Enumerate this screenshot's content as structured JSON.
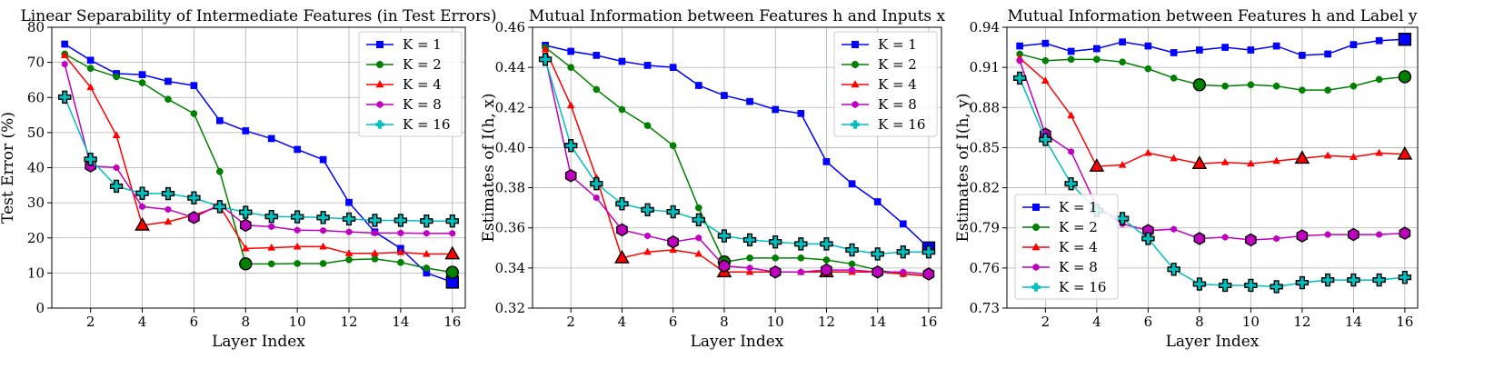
{
  "chart_data": [
    {
      "type": "line",
      "title": "Linear Separability of Intermediate Features (in Test Errors)",
      "xlabel": "Layer Index",
      "ylabel": "Test Error (%)",
      "xlim": [
        0.5,
        16.5
      ],
      "ylim": [
        0,
        80
      ],
      "xticks": [
        2,
        4,
        6,
        8,
        10,
        12,
        14,
        16
      ],
      "xtick_labels": [
        "2",
        "4",
        "6",
        "8",
        "10",
        "12",
        "14",
        "16"
      ],
      "yticks": [
        0,
        10,
        20,
        30,
        40,
        50,
        60,
        70,
        80
      ],
      "ytick_labels": [
        "0",
        "10",
        "20",
        "30",
        "40",
        "50",
        "60",
        "70",
        "80"
      ],
      "grid": true,
      "legend_position": "top-right",
      "x": [
        1,
        2,
        3,
        4,
        5,
        6,
        7,
        8,
        9,
        10,
        11,
        12,
        13,
        14,
        15,
        16
      ],
      "series": [
        {
          "name": "K = 1",
          "color": "#0000ff",
          "marker": "square",
          "values": [
            75.2,
            70.6,
            66.8,
            66.5,
            64.6,
            63.4,
            53.4,
            50.5,
            48.3,
            45.2,
            42.3,
            30.1,
            21.7,
            17.0,
            10.0,
            7.4
          ],
          "highlight": [
            16
          ]
        },
        {
          "name": "K = 2",
          "color": "#008000",
          "marker": "circle",
          "values": [
            72.4,
            68.3,
            65.9,
            64.2,
            59.5,
            55.4,
            38.9,
            12.6,
            12.6,
            12.7,
            12.7,
            13.8,
            14.0,
            13.0,
            11.4,
            10.2
          ],
          "highlight": [
            8,
            16
          ]
        },
        {
          "name": "K = 4",
          "color": "#ff0000",
          "marker": "triangle",
          "values": [
            72.0,
            62.9,
            49.2,
            23.6,
            24.6,
            26.5,
            29.0,
            17.0,
            17.2,
            17.5,
            17.5,
            15.6,
            15.6,
            15.9,
            15.4,
            15.4
          ],
          "highlight": [
            4,
            16
          ]
        },
        {
          "name": "K = 8",
          "color": "#bf00bf",
          "marker": "hexagon",
          "values": [
            69.5,
            40.5,
            40.0,
            28.9,
            28.1,
            25.8,
            29.5,
            23.6,
            23.2,
            22.2,
            22.1,
            21.7,
            21.4,
            21.4,
            21.3,
            21.3
          ],
          "highlight": [
            2,
            6,
            8
          ]
        },
        {
          "name": "K = 16",
          "color": "#00bfbf",
          "marker": "plus",
          "values": [
            60.1,
            42.4,
            34.7,
            32.7,
            32.6,
            31.4,
            28.9,
            27.3,
            26.1,
            26.0,
            25.8,
            25.4,
            25.0,
            25.0,
            24.8,
            24.8
          ],
          "highlight": [
            1,
            2,
            3,
            4,
            5,
            6,
            7,
            8,
            9,
            10,
            11,
            12,
            13,
            14,
            15,
            16
          ]
        }
      ]
    },
    {
      "type": "line",
      "title": "Mutual Information between Features h and Inputs x",
      "xlabel": "Layer Index",
      "ylabel": "Estimates of I(h, x)",
      "xlim": [
        0.5,
        16.5
      ],
      "ylim": [
        0.32,
        0.46
      ],
      "xticks": [
        2,
        4,
        6,
        8,
        10,
        12,
        14,
        16
      ],
      "xtick_labels": [
        "2",
        "4",
        "6",
        "8",
        "10",
        "12",
        "14",
        "16"
      ],
      "yticks": [
        0.32,
        0.34,
        0.36,
        0.38,
        0.4,
        0.42,
        0.44,
        0.46
      ],
      "ytick_labels": [
        "0.32",
        "0.34",
        "0.36",
        "0.38",
        "0.40",
        "0.42",
        "0.44",
        "0.46"
      ],
      "grid": true,
      "legend_position": "top-right",
      "x": [
        1,
        2,
        3,
        4,
        5,
        6,
        7,
        8,
        9,
        10,
        11,
        12,
        13,
        14,
        15,
        16
      ],
      "series": [
        {
          "name": "K = 1",
          "color": "#0000ff",
          "marker": "square",
          "values": [
            0.451,
            0.448,
            0.446,
            0.443,
            0.441,
            0.44,
            0.431,
            0.426,
            0.423,
            0.419,
            0.417,
            0.393,
            0.382,
            0.373,
            0.362,
            0.35
          ],
          "highlight": [
            16
          ]
        },
        {
          "name": "K = 2",
          "color": "#008000",
          "marker": "circle",
          "values": [
            0.45,
            0.44,
            0.429,
            0.419,
            0.411,
            0.401,
            0.37,
            0.343,
            0.345,
            0.345,
            0.345,
            0.344,
            0.342,
            0.339,
            0.337,
            0.336
          ],
          "highlight": [
            8
          ]
        },
        {
          "name": "K = 4",
          "color": "#ff0000",
          "marker": "triangle",
          "values": [
            0.449,
            0.421,
            0.385,
            0.345,
            0.348,
            0.349,
            0.347,
            0.338,
            0.338,
            0.338,
            0.338,
            0.338,
            0.338,
            0.338,
            0.337,
            0.336
          ],
          "highlight": [
            4,
            8,
            12
          ]
        },
        {
          "name": "K = 8",
          "color": "#bf00bf",
          "marker": "hexagon",
          "values": [
            0.445,
            0.386,
            0.375,
            0.359,
            0.356,
            0.353,
            0.355,
            0.341,
            0.34,
            0.338,
            0.338,
            0.339,
            0.339,
            0.338,
            0.338,
            0.337
          ],
          "highlight": [
            2,
            4,
            6,
            8,
            10,
            12,
            14,
            16
          ]
        },
        {
          "name": "K = 16",
          "color": "#00bfbf",
          "marker": "plus",
          "values": [
            0.444,
            0.401,
            0.382,
            0.372,
            0.369,
            0.368,
            0.364,
            0.356,
            0.354,
            0.353,
            0.352,
            0.352,
            0.349,
            0.347,
            0.348,
            0.348
          ],
          "highlight": [
            1,
            2,
            3,
            4,
            5,
            6,
            7,
            8,
            9,
            10,
            11,
            12,
            13,
            14,
            15,
            16
          ]
        }
      ]
    },
    {
      "type": "line",
      "title": "Mutual Information between Features h and Label y",
      "xlabel": "Layer Index",
      "ylabel": "Estimates of I(h, y)",
      "xlim": [
        0.5,
        16.5
      ],
      "ylim": [
        0.73,
        0.94
      ],
      "xticks": [
        2,
        4,
        6,
        8,
        10,
        12,
        14,
        16
      ],
      "xtick_labels": [
        "2",
        "4",
        "6",
        "8",
        "10",
        "12",
        "14",
        "16"
      ],
      "yticks": [
        0.73,
        0.76,
        0.79,
        0.82,
        0.85,
        0.88,
        0.91,
        0.94
      ],
      "ytick_labels": [
        "0.73",
        "0.76",
        "0.79",
        "0.82",
        "0.85",
        "0.88",
        "0.91",
        "0.94"
      ],
      "grid": true,
      "legend_position": "bottom-left",
      "x": [
        1,
        2,
        3,
        4,
        5,
        6,
        7,
        8,
        9,
        10,
        11,
        12,
        13,
        14,
        15,
        16
      ],
      "series": [
        {
          "name": "K = 1",
          "color": "#0000ff",
          "marker": "square",
          "values": [
            0.926,
            0.928,
            0.922,
            0.924,
            0.929,
            0.926,
            0.921,
            0.923,
            0.925,
            0.923,
            0.926,
            0.919,
            0.92,
            0.927,
            0.93,
            0.931
          ],
          "highlight": [
            16
          ]
        },
        {
          "name": "K = 2",
          "color": "#008000",
          "marker": "circle",
          "values": [
            0.92,
            0.915,
            0.916,
            0.916,
            0.914,
            0.909,
            0.902,
            0.897,
            0.896,
            0.897,
            0.896,
            0.893,
            0.893,
            0.896,
            0.901,
            0.903
          ],
          "highlight": [
            8,
            16
          ]
        },
        {
          "name": "K = 4",
          "color": "#ff0000",
          "marker": "triangle",
          "values": [
            0.917,
            0.9,
            0.874,
            0.836,
            0.837,
            0.846,
            0.842,
            0.838,
            0.839,
            0.838,
            0.84,
            0.842,
            0.844,
            0.843,
            0.846,
            0.845
          ],
          "highlight": [
            4,
            8,
            12,
            16
          ]
        },
        {
          "name": "K = 8",
          "color": "#bf00bf",
          "marker": "hexagon",
          "values": [
            0.915,
            0.86,
            0.847,
            0.806,
            0.793,
            0.788,
            0.789,
            0.782,
            0.783,
            0.781,
            0.782,
            0.784,
            0.785,
            0.785,
            0.785,
            0.786
          ],
          "highlight": [
            2,
            6,
            8,
            10,
            12,
            14,
            16
          ]
        },
        {
          "name": "K = 16",
          "color": "#00bfbf",
          "marker": "plus",
          "values": [
            0.902,
            0.856,
            0.823,
            0.803,
            0.797,
            0.782,
            0.759,
            0.748,
            0.747,
            0.747,
            0.746,
            0.749,
            0.751,
            0.751,
            0.751,
            0.753
          ],
          "highlight": [
            1,
            2,
            3,
            4,
            5,
            6,
            7,
            8,
            9,
            10,
            11,
            12,
            13,
            14,
            15,
            16
          ]
        }
      ]
    }
  ]
}
